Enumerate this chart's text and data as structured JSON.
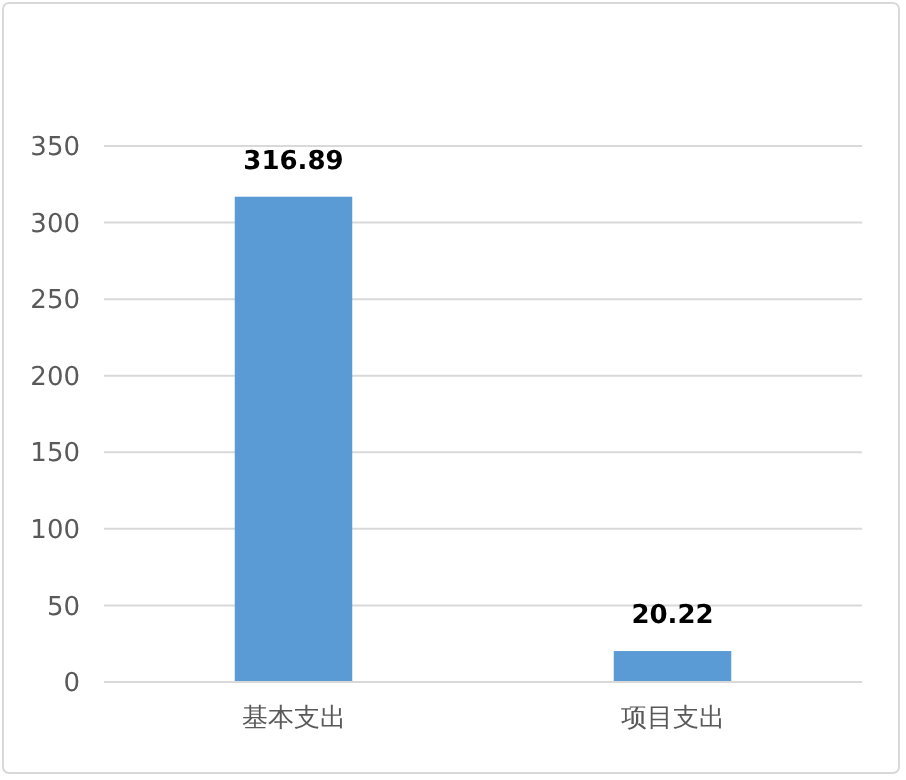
{
  "chart_data": {
    "type": "bar",
    "categories": [
      "基本支出",
      "项目支出"
    ],
    "values": [
      316.89,
      20.22
    ],
    "color": "#5b9bd5",
    "ylim": [
      0,
      350
    ],
    "yticks": [
      0,
      50,
      100,
      150,
      200,
      250,
      300,
      350
    ],
    "grid": "y",
    "data_labels": true
  }
}
